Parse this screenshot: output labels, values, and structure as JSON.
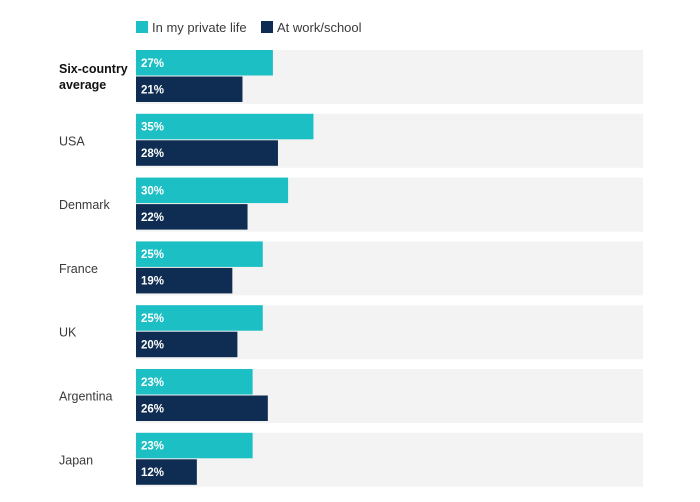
{
  "chart_data": {
    "type": "bar",
    "orientation": "horizontal",
    "title": "",
    "xlabel": "",
    "ylabel": "",
    "xlim": [
      0,
      100
    ],
    "grid": false,
    "legend": "top-left",
    "categories": [
      "Six-country average",
      "USA",
      "Denmark",
      "France",
      "UK",
      "Argentina",
      "Japan"
    ],
    "bold_categories": [
      "Six-country average"
    ],
    "series": [
      {
        "name": "In my private life",
        "color": "#1bbfc4",
        "values": [
          27,
          35,
          30,
          25,
          25,
          23,
          23
        ],
        "labels": [
          "27%",
          "35%",
          "30%",
          "25%",
          "25%",
          "23%",
          "23%"
        ]
      },
      {
        "name": "At work/school",
        "color": "#0f2d52",
        "values": [
          21,
          28,
          22,
          19,
          20,
          26,
          12
        ],
        "labels": [
          "21%",
          "28%",
          "22%",
          "19%",
          "20%",
          "26%",
          "12%"
        ]
      }
    ],
    "track_color": "#f3f3f3"
  }
}
